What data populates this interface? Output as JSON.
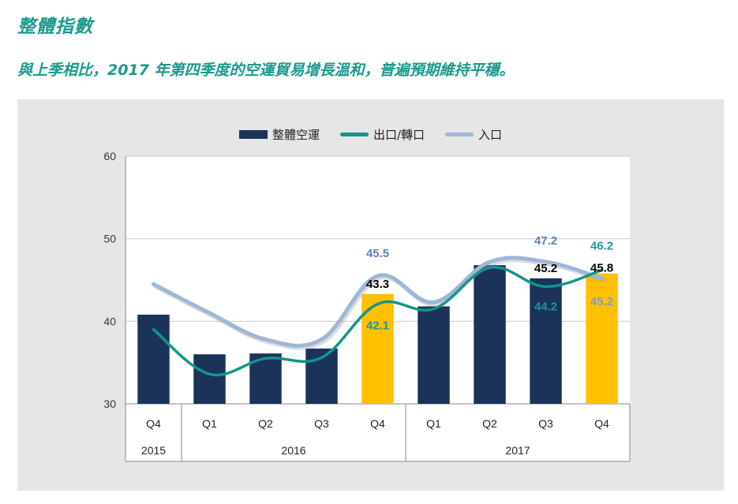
{
  "header": {
    "title": "整體指數",
    "subtitle": "與上季相比，2017 年第四季度的空運貿易增長溫和，普遍預期維持平穩。"
  },
  "colors": {
    "bar_default": "#1b3358",
    "bar_highlight": "#ffc000",
    "export_line": "#13958c",
    "import_line": "#9fb6d8",
    "import_label": "#5b82b8",
    "export_label": "#1a9a98",
    "overall_label": "#000000",
    "highlight_label_export": "#1a9a98",
    "highlight_label_import": "#7e9fcc"
  },
  "chart_data": {
    "type": "bar",
    "title": "",
    "xlabel": "",
    "ylabel": "",
    "ylim": [
      30,
      60
    ],
    "yticks": [
      "30",
      "40",
      "50",
      "60"
    ],
    "categories": [
      "Q4",
      "Q1",
      "Q2",
      "Q3",
      "Q4",
      "Q1",
      "Q2",
      "Q3",
      "Q4"
    ],
    "year_groups": [
      {
        "label": "2015",
        "span": 1
      },
      {
        "label": "2016",
        "span": 4
      },
      {
        "label": "2017",
        "span": 4
      }
    ],
    "highlight_indices": [
      4,
      8
    ],
    "series": [
      {
        "name": "整體空運",
        "kind": "bar",
        "values": [
          40.8,
          36.0,
          36.1,
          36.7,
          43.3,
          41.8,
          46.8,
          45.2,
          45.8
        ]
      },
      {
        "name": "出口/轉口",
        "kind": "line",
        "values": [
          39.0,
          33.6,
          35.5,
          35.6,
          42.1,
          41.5,
          46.5,
          44.2,
          46.2
        ]
      },
      {
        "name": "入口",
        "kind": "line",
        "values": [
          44.5,
          41.0,
          37.8,
          37.8,
          45.5,
          42.3,
          47.2,
          47.2,
          45.2
        ]
      }
    ],
    "data_labels": [
      {
        "index": 4,
        "series": "出口/轉口",
        "text": "42.1"
      },
      {
        "index": 4,
        "series": "整體空運",
        "text": "43.3"
      },
      {
        "index": 4,
        "series": "入口",
        "text": "45.5"
      },
      {
        "index": 7,
        "series": "入口",
        "text": "47.2"
      },
      {
        "index": 7,
        "series": "整體空運",
        "text": "45.2"
      },
      {
        "index": 7,
        "series": "出口/轉口",
        "text": "44.2"
      },
      {
        "index": 8,
        "series": "出口/轉口",
        "text": "46.2"
      },
      {
        "index": 8,
        "series": "整體空運",
        "text": "45.8"
      },
      {
        "index": 8,
        "series": "入口",
        "text": "45.2"
      }
    ],
    "legend_position": "top-center",
    "grid": true
  }
}
